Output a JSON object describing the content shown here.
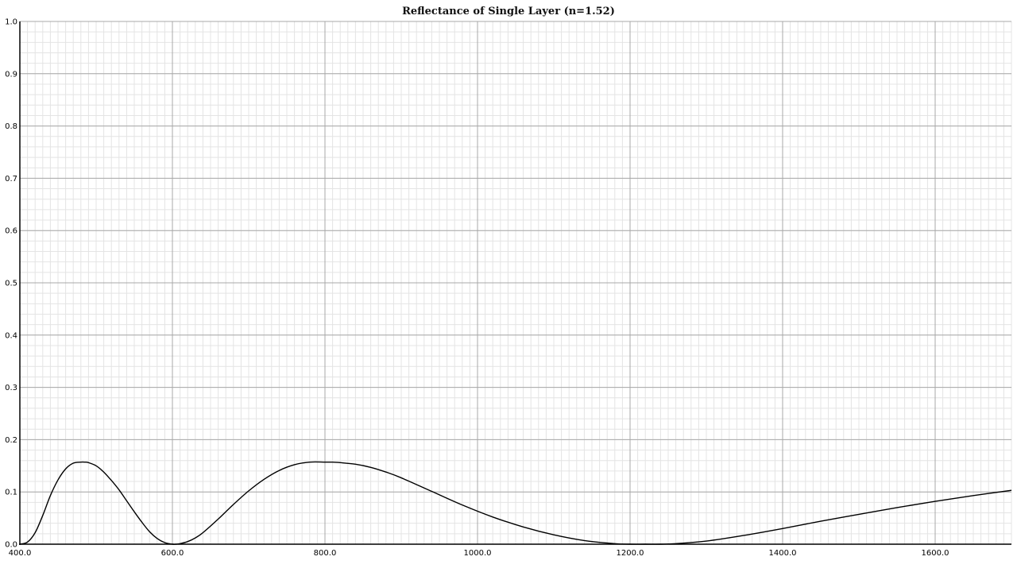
{
  "chart_data": {
    "type": "line",
    "title": "Reflectance of Single Layer (n=1.52)",
    "xlabel": "",
    "ylabel": "",
    "xlim": [
      400,
      1700
    ],
    "ylim": [
      0,
      1
    ],
    "x_ticks": [
      400,
      600,
      800,
      1000,
      1200,
      1400,
      1600
    ],
    "x_tick_labels": [
      "400.0",
      "600.0",
      "800.0",
      "1000.0",
      "1200.0",
      "1400.0",
      "1600.0"
    ],
    "y_ticks": [
      0,
      0.1,
      0.2,
      0.3,
      0.4,
      0.5,
      0.6,
      0.7,
      0.8,
      0.9,
      1.0
    ],
    "y_tick_labels": [
      "0.0",
      "0.1",
      "0.2",
      "0.3",
      "0.4",
      "0.5",
      "0.6",
      "0.7",
      "0.8",
      "0.9",
      "1.0"
    ],
    "grid": true,
    "legend": "none",
    "series": [
      {
        "color": "#000000",
        "x": [
          400,
          410,
          420,
          430,
          440,
          450,
          460,
          470,
          480,
          485,
          490,
          500,
          510,
          520,
          530,
          540,
          550,
          560,
          570,
          580,
          590,
          600,
          605,
          610,
          620,
          630,
          640,
          660,
          680,
          700,
          720,
          740,
          760,
          780,
          800,
          810,
          820,
          840,
          860,
          880,
          900,
          940,
          980,
          1020,
          1060,
          1100,
          1140,
          1180,
          1200,
          1220,
          1240,
          1260,
          1300,
          1350,
          1400,
          1450,
          1500,
          1550,
          1600,
          1650,
          1700
        ],
        "y": [
          0.0,
          0.004,
          0.022,
          0.055,
          0.093,
          0.123,
          0.144,
          0.155,
          0.157,
          0.157,
          0.156,
          0.15,
          0.138,
          0.122,
          0.104,
          0.083,
          0.062,
          0.042,
          0.024,
          0.011,
          0.003,
          0.0,
          0.0,
          0.001,
          0.005,
          0.012,
          0.022,
          0.048,
          0.076,
          0.102,
          0.124,
          0.141,
          0.152,
          0.157,
          0.157,
          0.157,
          0.156,
          0.153,
          0.147,
          0.138,
          0.127,
          0.101,
          0.075,
          0.052,
          0.033,
          0.018,
          0.007,
          0.001,
          0.0,
          0.0,
          0.0,
          0.001,
          0.006,
          0.017,
          0.03,
          0.044,
          0.057,
          0.07,
          0.082,
          0.093,
          0.103
        ]
      }
    ]
  }
}
